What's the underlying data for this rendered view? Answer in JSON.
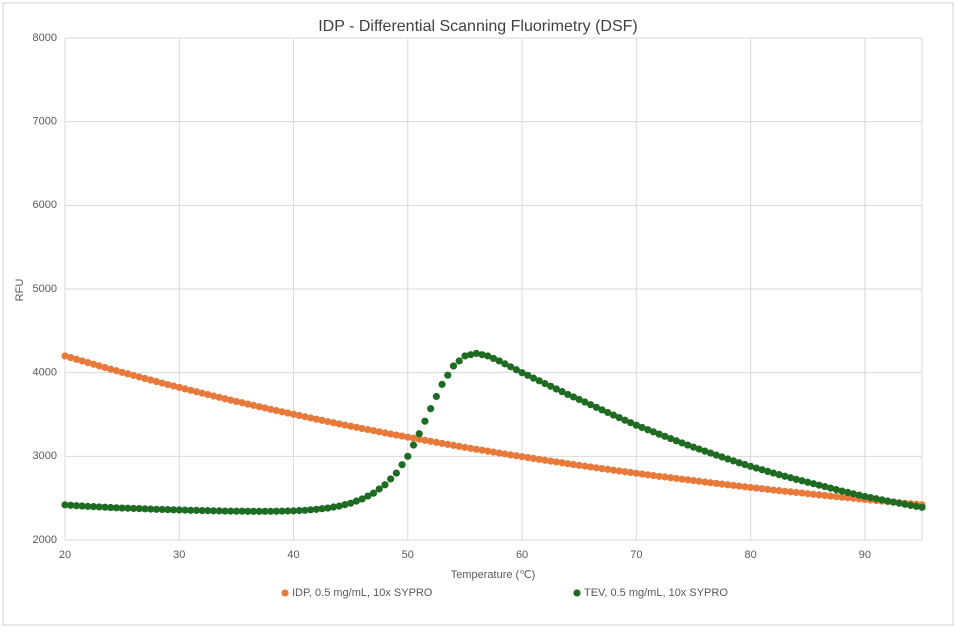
{
  "chart_data": {
    "type": "scatter",
    "title": "IDP - Differential Scanning Fluorimetry (DSF)",
    "x_label": "Temperature (℃)",
    "y_label": "RFU",
    "xlim": [
      20,
      95
    ],
    "xticks": [
      20,
      30,
      40,
      50,
      60,
      70,
      80,
      90
    ],
    "ylim": [
      2000,
      8000
    ],
    "yticks": [
      2000,
      3000,
      4000,
      5000,
      6000,
      7000,
      8000
    ],
    "grid": true,
    "legend": "bottom",
    "x": [
      20,
      20.5,
      21,
      21.5,
      22,
      22.5,
      23,
      23.5,
      24,
      24.5,
      25,
      25.5,
      26,
      26.5,
      27,
      27.5,
      28,
      28.5,
      29,
      29.5,
      30,
      30.5,
      31,
      31.5,
      32,
      32.5,
      33,
      33.5,
      34,
      34.5,
      35,
      35.5,
      36,
      36.5,
      37,
      37.5,
      38,
      38.5,
      39,
      39.5,
      40,
      40.5,
      41,
      41.5,
      42,
      42.5,
      43,
      43.5,
      44,
      44.5,
      45,
      45.5,
      46,
      46.5,
      47,
      47.5,
      48,
      48.5,
      49,
      49.5,
      50,
      50.5,
      51,
      51.5,
      52,
      52.5,
      53,
      53.5,
      54,
      54.5,
      55,
      55.5,
      56,
      56.5,
      57,
      57.5,
      58,
      58.5,
      59,
      59.5,
      60,
      60.5,
      61,
      61.5,
      62,
      62.5,
      63,
      63.5,
      64,
      64.5,
      65,
      65.5,
      66,
      66.5,
      67,
      67.5,
      68,
      68.5,
      69,
      69.5,
      70,
      70.5,
      71,
      71.5,
      72,
      72.5,
      73,
      73.5,
      74,
      74.5,
      75,
      75.5,
      76,
      76.5,
      77,
      77.5,
      78,
      78.5,
      79,
      79.5,
      80,
      80.5,
      81,
      81.5,
      82,
      82.5,
      83,
      83.5,
      84,
      84.5,
      85,
      85.5,
      86,
      86.5,
      87,
      87.5,
      88,
      88.5,
      89,
      89.5,
      90,
      90.5,
      91,
      91.5,
      92,
      92.5,
      93,
      93.5,
      94,
      94.5,
      95
    ],
    "series": [
      {
        "name": "IDP, 0.5 mg/mL, 10x SYPRO",
        "color": "#e8793b",
        "values": [
          4200,
          4180,
          4160,
          4140,
          4120,
          4101,
          4081,
          4062,
          4042,
          4023,
          4004,
          3986,
          3967,
          3949,
          3930,
          3912,
          3894,
          3876,
          3858,
          3841,
          3823,
          3806,
          3789,
          3772,
          3755,
          3738,
          3721,
          3705,
          3688,
          3672,
          3656,
          3640,
          3624,
          3609,
          3593,
          3578,
          3562,
          3547,
          3532,
          3517,
          3502,
          3488,
          3473,
          3459,
          3444,
          3430,
          3415,
          3401,
          3387,
          3374,
          3360,
          3347,
          3333,
          3320,
          3306,
          3293,
          3280,
          3267,
          3254,
          3242,
          3229,
          3217,
          3204,
          3192,
          3179,
          3167,
          3155,
          3143,
          3131,
          3119,
          3107,
          3096,
          3084,
          3073,
          3062,
          3051,
          3039,
          3028,
          3017,
          3007,
          2996,
          2985,
          2974,
          2964,
          2953,
          2943,
          2933,
          2923,
          2912,
          2902,
          2892,
          2883,
          2873,
          2863,
          2853,
          2844,
          2834,
          2825,
          2816,
          2807,
          2797,
          2788,
          2779,
          2770,
          2761,
          2753,
          2744,
          2736,
          2727,
          2719,
          2710,
          2702,
          2693,
          2685,
          2676,
          2668,
          2660,
          2652,
          2644,
          2636,
          2628,
          2621,
          2613,
          2605,
          2597,
          2590,
          2582,
          2575,
          2568,
          2561,
          2553,
          2546,
          2539,
          2532,
          2525,
          2518,
          2511,
          2505,
          2498,
          2491,
          2484,
          2478,
          2471,
          2465,
          2458,
          2452,
          2445,
          2439,
          2433,
          2427,
          2420
        ]
      },
      {
        "name": "TEV, 0.5 mg/mL, 10x SYPRO",
        "color": "#1e6b22",
        "values": [
          2420,
          2415,
          2410,
          2406,
          2402,
          2399,
          2395,
          2392,
          2388,
          2385,
          2382,
          2380,
          2377,
          2375,
          2372,
          2370,
          2367,
          2365,
          2363,
          2361,
          2359,
          2357,
          2355,
          2354,
          2352,
          2351,
          2349,
          2348,
          2346,
          2345,
          2344,
          2344,
          2343,
          2343,
          2342,
          2343,
          2343,
          2344,
          2345,
          2347,
          2348,
          2352,
          2355,
          2361,
          2366,
          2374,
          2382,
          2394,
          2405,
          2423,
          2440,
          2465,
          2490,
          2525,
          2560,
          2610,
          2660,
          2730,
          2800,
          2900,
          3000,
          3135,
          3270,
          3420,
          3570,
          3715,
          3860,
          3970,
          4080,
          4140,
          4200,
          4215,
          4230,
          4215,
          4200,
          4170,
          4140,
          4105,
          4070,
          4035,
          4000,
          3968,
          3935,
          3903,
          3870,
          3838,
          3805,
          3773,
          3740,
          3710,
          3680,
          3649,
          3617,
          3586,
          3555,
          3524,
          3493,
          3463,
          3432,
          3402,
          3372,
          3345,
          3318,
          3292,
          3265,
          3239,
          3212,
          3186,
          3160,
          3135,
          3110,
          3086,
          3062,
          3039,
          3015,
          2992,
          2968,
          2946,
          2923,
          2902,
          2880,
          2860,
          2840,
          2820,
          2800,
          2781,
          2762,
          2744,
          2725,
          2708,
          2690,
          2673,
          2655,
          2638,
          2620,
          2603,
          2585,
          2569,
          2552,
          2536,
          2520,
          2507,
          2493,
          2480,
          2466,
          2453,
          2440,
          2427,
          2414,
          2402,
          2390
        ]
      }
    ]
  }
}
